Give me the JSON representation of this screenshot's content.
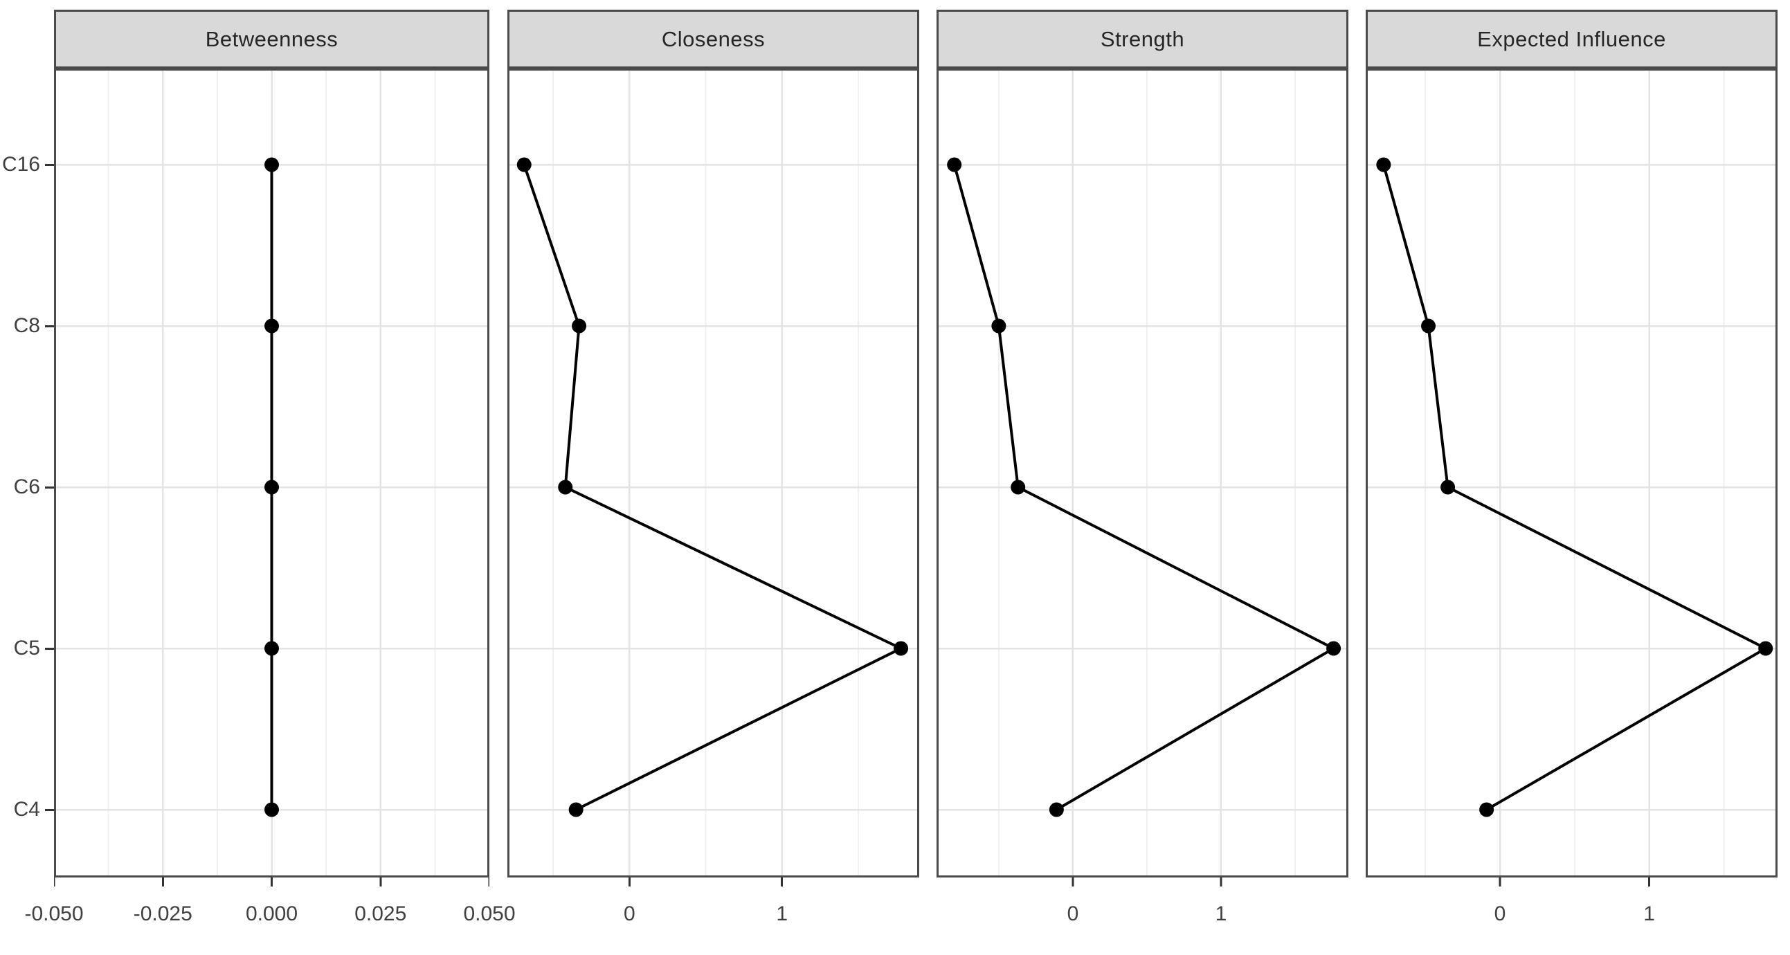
{
  "chart_data": {
    "type": "line",
    "variant": "faceted-horizontal-dot-line-centrality-plot",
    "title": "",
    "xlabel": "",
    "ylabel": "",
    "grid": "major-and-minor",
    "legend_position": "none",
    "categories_bottom_to_top": [
      "C4",
      "C5",
      "C6",
      "C8",
      "C16"
    ],
    "y_axis": {
      "tick_labels_top_to_bottom": [
        "C16",
        "C8",
        "C6",
        "C5",
        "C4"
      ]
    },
    "facets": [
      {
        "label": "Betweenness",
        "xlim": [
          -0.05,
          0.05
        ],
        "major_ticks": [
          -0.05,
          -0.025,
          0,
          0.025,
          0.05
        ],
        "tick_labels": [
          "-0.050",
          "-0.025",
          "0.000",
          "0.025",
          "0.050"
        ],
        "minor_ticks": [
          -0.0375,
          -0.0125,
          0.0125,
          0.0375
        ],
        "values": {
          "C4": 0.0,
          "C5": 0.0,
          "C6": 0.0,
          "C8": 0.0,
          "C16": 0.0
        }
      },
      {
        "label": "Closeness",
        "xlim": [
          -0.8,
          1.9
        ],
        "major_ticks": [
          0,
          1
        ],
        "tick_labels": [
          "0",
          "1"
        ],
        "minor_ticks": [
          -0.5,
          0.5,
          1.5
        ],
        "values": {
          "C4": -0.35,
          "C5": 1.78,
          "C6": -0.42,
          "C8": -0.33,
          "C16": -0.69
        }
      },
      {
        "label": "Strength",
        "xlim": [
          -0.92,
          1.86
        ],
        "major_ticks": [
          0,
          1
        ],
        "tick_labels": [
          "0",
          "1"
        ],
        "minor_ticks": [
          -0.5,
          0.5,
          1.5
        ],
        "values": {
          "C4": -0.11,
          "C5": 1.76,
          "C6": -0.37,
          "C8": -0.5,
          "C16": -0.8
        }
      },
      {
        "label": "Expected Influence",
        "xlim": [
          -0.9,
          1.86
        ],
        "major_ticks": [
          0,
          1
        ],
        "tick_labels": [
          "0",
          "1"
        ],
        "minor_ticks": [
          -0.5,
          0.5,
          1.5
        ],
        "values": {
          "C4": -0.09,
          "C5": 1.78,
          "C6": -0.35,
          "C8": -0.48,
          "C16": -0.78
        }
      }
    ],
    "style": {
      "background": "#ffffff",
      "strip_fill": "#d9d9d9",
      "strip_text_color": "#262626",
      "panel_border_color": "#4a4a4a",
      "grid_major_color": "#e3e3e3",
      "grid_minor_color": "#f0f0f0",
      "axis_text_color": "#404040",
      "tick_mark_color": "#333333",
      "series_color": "#000000"
    }
  }
}
